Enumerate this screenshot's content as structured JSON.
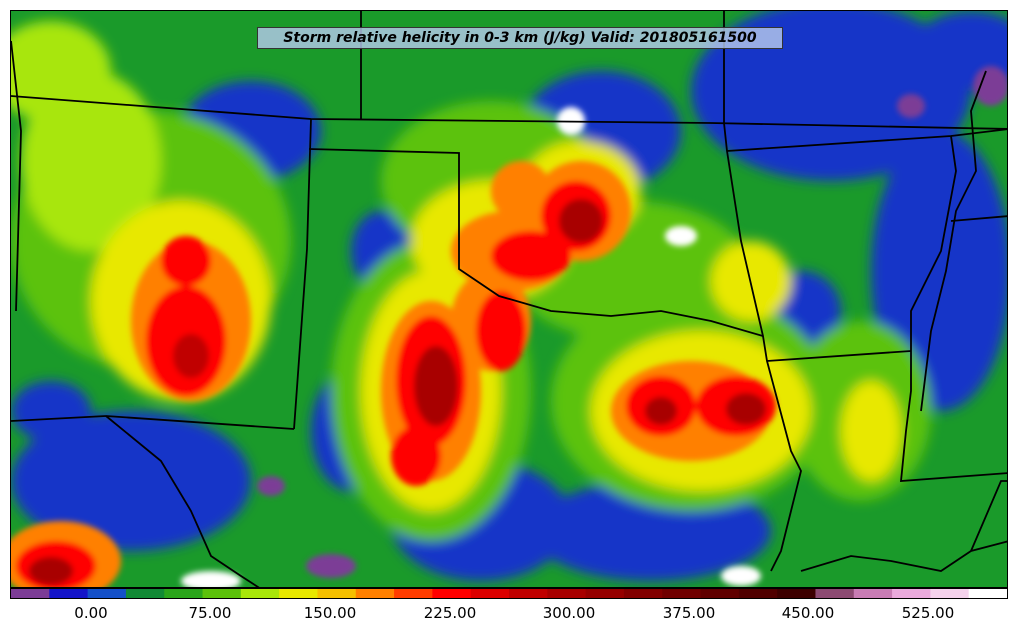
{
  "title": "Storm relative helicity in 0-3 km (J/kg) Valid: 201805161500",
  "colorbar": {
    "tick_labels": [
      "0.00",
      "75.00",
      "150.00",
      "225.00",
      "300.00",
      "375.00",
      "450.00",
      "525.00"
    ],
    "colors": [
      "#7c3c96",
      "#1414c8",
      "#1450c8",
      "#118a35",
      "#2aa51a",
      "#5cc20a",
      "#a8e60a",
      "#e8e800",
      "#f5c000",
      "#ff8000",
      "#ff3c00",
      "#ff0000",
      "#dc0000",
      "#c00000",
      "#a80000",
      "#960000",
      "#820000",
      "#700000",
      "#600000",
      "#500000",
      "#3c0000",
      "#8c4a72",
      "#c87cb4",
      "#eaaadc",
      "#f5d2ec",
      "#ffffff"
    ]
  }
}
